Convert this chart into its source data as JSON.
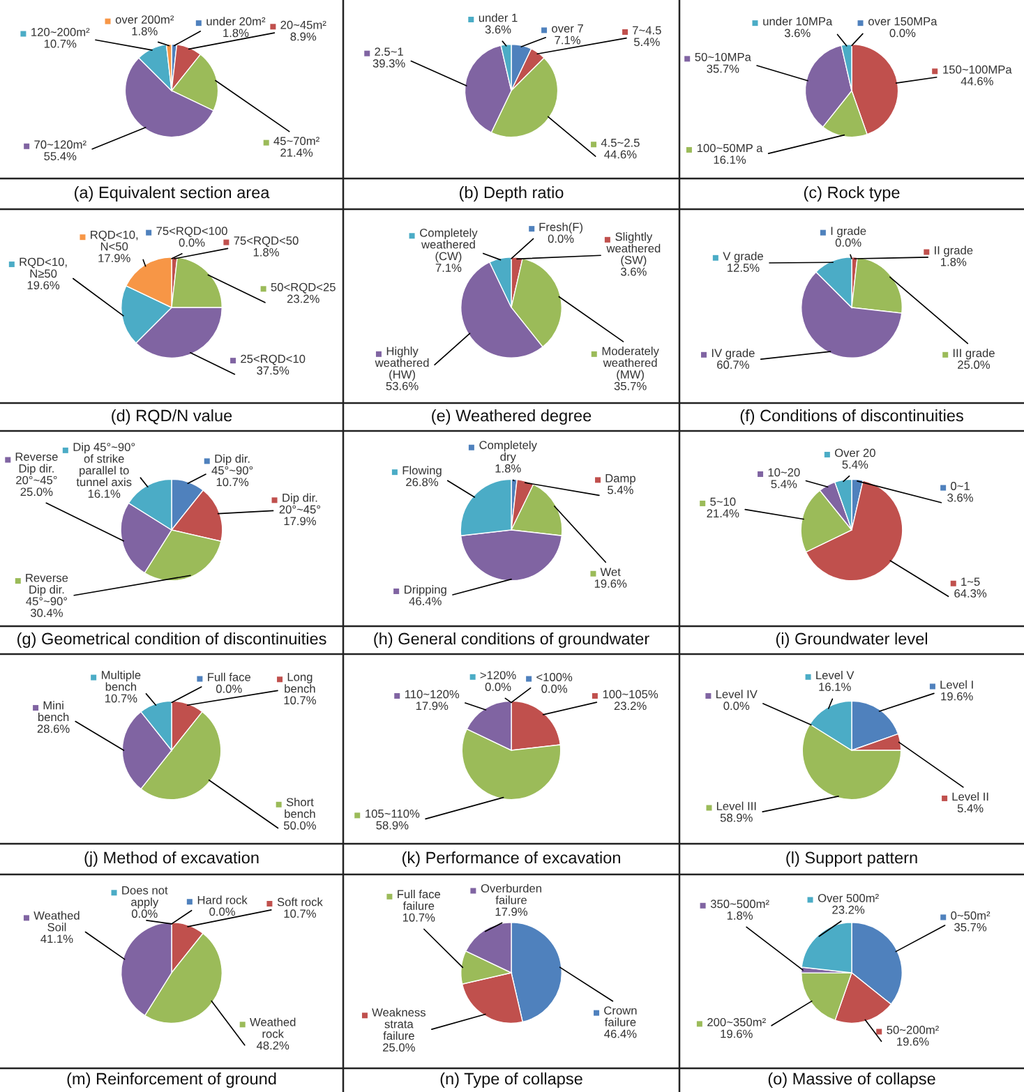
{
  "chart_data": [
    {
      "type": "pie",
      "title": "(a) Equivalent section area",
      "categories": [
        "under 20m²",
        "20~45m²",
        "45~70m²",
        "70~120m²",
        "120~200m²",
        "over 200m²"
      ],
      "values": [
        1.8,
        8.9,
        21.4,
        55.4,
        10.7,
        1.8
      ],
      "colors": [
        "#4f81bd",
        "#c0504d",
        "#9bbb59",
        "#8064a2",
        "#4bacc6",
        "#f79646"
      ],
      "value_labels": [
        "1.8%",
        "8.9%",
        "21.4%",
        "55.4%",
        "10.7%",
        "1.8%"
      ],
      "legend": "center"
    },
    {
      "type": "pie",
      "title": "(b) Depth ratio",
      "categories": [
        "over 7",
        "7~4.5",
        "4.5~2.5",
        "2.5~1",
        "under 1"
      ],
      "values": [
        7.1,
        5.4,
        44.6,
        39.3,
        3.6
      ],
      "colors": [
        "#4f81bd",
        "#c0504d",
        "#9bbb59",
        "#8064a2",
        "#4bacc6"
      ],
      "value_labels": [
        "7.1%",
        "5.4%",
        "44.6%",
        "39.3%",
        "3.6%"
      ],
      "legend": "center"
    },
    {
      "type": "pie",
      "title": "(c) Rock type",
      "categories": [
        "over 150MPa",
        "150~100MPa",
        "100~50MP a",
        "50~10MPa",
        "under 10MPa"
      ],
      "values": [
        0.0,
        44.6,
        16.1,
        35.7,
        3.6
      ],
      "colors": [
        "#4f81bd",
        "#c0504d",
        "#9bbb59",
        "#8064a2",
        "#4bacc6"
      ],
      "value_labels": [
        "0.0%",
        "44.6%",
        "16.1%",
        "35.7%",
        "3.6%"
      ],
      "legend": "center"
    },
    {
      "type": "pie",
      "title": "(d) RQD/N value",
      "categories": [
        "75<RQD<100",
        "75<RQD<50",
        "50<RQD<25",
        "25<RQD<10",
        "RQD<10, N≥50",
        "RQD<10, N<50"
      ],
      "values": [
        0.0,
        1.8,
        23.2,
        37.5,
        19.6,
        17.9
      ],
      "colors": [
        "#4f81bd",
        "#c0504d",
        "#9bbb59",
        "#8064a2",
        "#4bacc6",
        "#f79646"
      ],
      "value_labels": [
        "0.0%",
        "1.8%",
        "23.2%",
        "37.5%",
        "19.6%",
        "17.9%"
      ],
      "legend": "center"
    },
    {
      "type": "pie",
      "title": "(e) Weathered degree",
      "categories": [
        "Fresh(F)",
        "Slightly weathered (SW)",
        "Moderately weathered (MW)",
        "Highly weathered (HW)",
        "Completely weathered (CW)"
      ],
      "values": [
        0.0,
        3.6,
        35.7,
        53.6,
        7.1
      ],
      "colors": [
        "#4f81bd",
        "#c0504d",
        "#9bbb59",
        "#8064a2",
        "#4bacc6"
      ],
      "value_labels": [
        "0.0%",
        "3.6%",
        "35.7%",
        "53.6%",
        "7.1%"
      ],
      "legend": "center"
    },
    {
      "type": "pie",
      "title": "(f) Conditions of discontinuities",
      "categories": [
        "I grade",
        "II grade",
        "III grade",
        "IV grade",
        "V grade"
      ],
      "values": [
        0.0,
        1.8,
        25.0,
        60.7,
        12.5
      ],
      "colors": [
        "#4f81bd",
        "#c0504d",
        "#9bbb59",
        "#8064a2",
        "#4bacc6"
      ],
      "value_labels": [
        "0.0%",
        "1.8%",
        "25.0%",
        "60.7%",
        "12.5%"
      ],
      "legend": "center"
    },
    {
      "type": "pie",
      "title": "(g) Geometrical condition of discontinuities",
      "categories": [
        "Dip dir. 45°~90°",
        "Dip dir. 20°~45°",
        "Reverse Dip dir. 45°~90°",
        "Reverse Dip dir. 20°~45°",
        "Dip 45°~90° of strike parallel to tunnel axis"
      ],
      "values": [
        10.7,
        17.9,
        30.4,
        25.0,
        16.1
      ],
      "colors": [
        "#4f81bd",
        "#c0504d",
        "#9bbb59",
        "#8064a2",
        "#4bacc6"
      ],
      "value_labels": [
        "10.7%",
        "17.9%",
        "30.4%",
        "25.0%",
        "16.1%"
      ],
      "legend": "center"
    },
    {
      "type": "pie",
      "title": "(h) General conditions of groundwater",
      "categories": [
        "Completely dry",
        "Damp",
        "Wet",
        "Dripping",
        "Flowing"
      ],
      "values": [
        1.8,
        5.4,
        19.6,
        46.4,
        26.8
      ],
      "colors": [
        "#4f81bd",
        "#c0504d",
        "#9bbb59",
        "#8064a2",
        "#4bacc6"
      ],
      "value_labels": [
        "1.8%",
        "5.4%",
        "19.6%",
        "46.4%",
        "26.8%"
      ],
      "legend": "center"
    },
    {
      "type": "pie",
      "title": "(i) Groundwater level",
      "categories": [
        "0~1",
        "1~5",
        "5~10",
        "10~20",
        "Over 20"
      ],
      "values": [
        3.6,
        64.3,
        21.4,
        5.4,
        5.4
      ],
      "colors": [
        "#4f81bd",
        "#c0504d",
        "#9bbb59",
        "#8064a2",
        "#4bacc6"
      ],
      "value_labels": [
        "3.6%",
        "64.3%",
        "21.4%",
        "5.4%",
        "5.4%"
      ],
      "legend": "center"
    },
    {
      "type": "pie",
      "title": "(j) Method of excavation",
      "categories": [
        "Full face",
        "Long bench",
        "Short bench",
        "Mini bench",
        "Multiple bench"
      ],
      "values": [
        0.0,
        10.7,
        50.0,
        28.6,
        10.7
      ],
      "colors": [
        "#4f81bd",
        "#c0504d",
        "#9bbb59",
        "#8064a2",
        "#4bacc6"
      ],
      "value_labels": [
        "0.0%",
        "10.7%",
        "50.0%",
        "28.6%",
        "10.7%"
      ],
      "legend": "center"
    },
    {
      "type": "pie",
      "title": "(k) Performance of excavation",
      "categories": [
        "<100%",
        "100~105%",
        "105~110%",
        "110~120%",
        ">120%"
      ],
      "values": [
        0.0,
        23.2,
        58.9,
        17.9,
        0.0
      ],
      "colors": [
        "#4f81bd",
        "#c0504d",
        "#9bbb59",
        "#8064a2",
        "#4bacc6"
      ],
      "value_labels": [
        "0.0%",
        "23.2%",
        "58.9%",
        "17.9%",
        "0.0%"
      ],
      "legend": "center"
    },
    {
      "type": "pie",
      "title": "(l) Support pattern",
      "categories": [
        "Level I",
        "Level II",
        "Level III",
        "Level IV",
        "Level V"
      ],
      "values": [
        19.6,
        5.4,
        58.9,
        0.0,
        16.1
      ],
      "colors": [
        "#4f81bd",
        "#c0504d",
        "#9bbb59",
        "#8064a2",
        "#4bacc6"
      ],
      "value_labels": [
        "19.6%",
        "5.4%",
        "58.9%",
        "0.0%",
        "16.1%"
      ],
      "legend": "center"
    },
    {
      "type": "pie",
      "title": "(m) Reinforcement of ground",
      "categories": [
        "Hard rock",
        "Soft rock",
        "Weathed rock",
        "Weathed Soil",
        "Does not apply"
      ],
      "values": [
        0.0,
        10.7,
        48.2,
        41.1,
        0.0
      ],
      "colors": [
        "#4f81bd",
        "#c0504d",
        "#9bbb59",
        "#8064a2",
        "#4bacc6"
      ],
      "value_labels": [
        "0.0%",
        "10.7%",
        "48.2%",
        "41.1%",
        "0.0%"
      ],
      "legend": "center"
    },
    {
      "type": "pie",
      "title": "(n) Type of collapse",
      "categories": [
        "Crown failure",
        "Weakness strata failure",
        "Full face failure",
        "Overburden failure"
      ],
      "values": [
        46.4,
        25.0,
        10.7,
        17.9
      ],
      "colors": [
        "#4f81bd",
        "#c0504d",
        "#9bbb59",
        "#8064a2"
      ],
      "value_labels": [
        "46.4%",
        "25.0%",
        "10.7%",
        "17.9%"
      ],
      "legend": "center"
    },
    {
      "type": "pie",
      "title": "(o) Massive of collapse",
      "categories": [
        "0~50m²",
        "50~200m²",
        "200~350m²",
        "350~500m²",
        "Over 500m²"
      ],
      "values": [
        35.7,
        19.6,
        19.6,
        1.8,
        23.2
      ],
      "colors": [
        "#4f81bd",
        "#c0504d",
        "#9bbb59",
        "#8064a2",
        "#4bacc6"
      ],
      "value_labels": [
        "35.7%",
        "19.6%",
        "19.6%",
        "1.8%",
        "23.2%"
      ],
      "legend": "center"
    }
  ]
}
